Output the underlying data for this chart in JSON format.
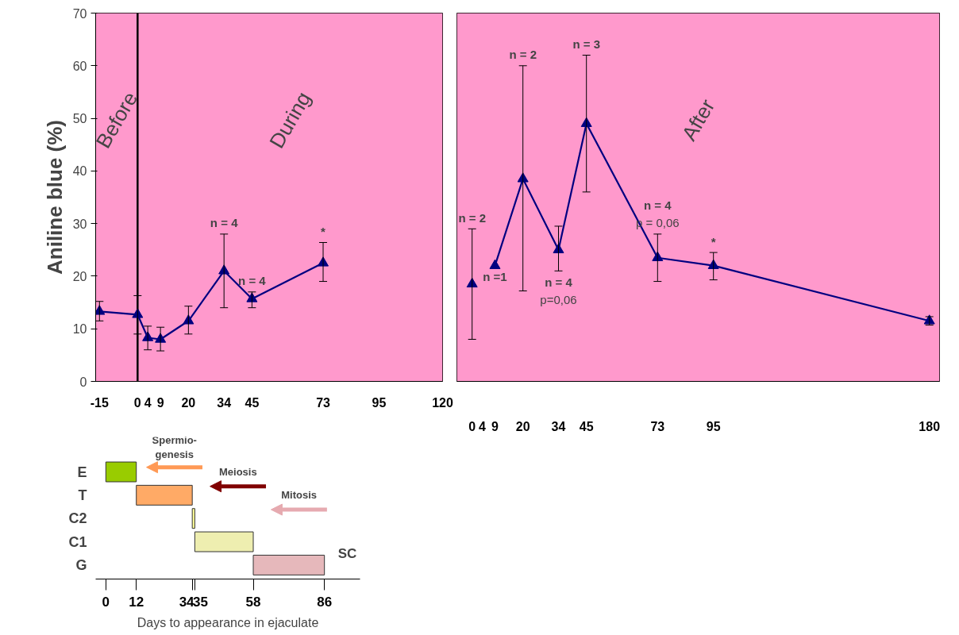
{
  "chart_data": [
    {
      "type": "line",
      "ylabel": "Aniline blue (%)",
      "x": [
        -15,
        0,
        4,
        9,
        20,
        34,
        45,
        73
      ],
      "series": [
        {
          "color": "#000080",
          "values": [
            13.3,
            12.7,
            8.3,
            8,
            11.5,
            21,
            15.7,
            22.5
          ],
          "errors": [
            [
              11.5,
              15.2
            ],
            [
              9,
              16.3
            ],
            [
              6,
              10.5
            ],
            [
              5.8,
              10.3
            ],
            [
              9,
              14.3
            ],
            [
              14,
              28
            ],
            [
              14,
              17
            ],
            [
              19,
              26.4
            ]
          ]
        }
      ],
      "marker": "triangle",
      "xlim": [
        -16.5,
        120
      ],
      "ylim": [
        0,
        70
      ],
      "xticks": [
        -15,
        0,
        4,
        9,
        20,
        34,
        45,
        73,
        95,
        120
      ],
      "yticks": [
        0,
        10,
        20,
        30,
        40,
        50,
        60,
        70
      ],
      "bands": [
        {
          "axis": "x",
          "from": -16.5,
          "to": 0,
          "label": "Before",
          "color": "#ff99cc"
        },
        {
          "axis": "x",
          "from": 0,
          "to": 120,
          "label": "During",
          "color": "#ff99cc"
        }
      ],
      "ref_lines": [
        {
          "axis": "x",
          "value": 0,
          "color": "#000000"
        }
      ],
      "annotations": [
        {
          "text": "n = 4",
          "x": 34,
          "y": 28
        },
        {
          "text": "n = 4",
          "x": 45,
          "y": 17
        },
        {
          "text": "*",
          "x": 73,
          "y": 26.4
        }
      ]
    },
    {
      "type": "line",
      "x": [
        0,
        4,
        9,
        20,
        34,
        45,
        73,
        95,
        180
      ],
      "series": [
        {
          "color": "#000080",
          "values": [
            18.5,
            null,
            22,
            38.5,
            25,
            49,
            23.5,
            22,
            11.5
          ],
          "errors": [
            [
              8,
              29
            ],
            null,
            null,
            [
              17.2,
              60
            ],
            [
              21,
              29.5
            ],
            [
              36,
              62
            ],
            [
              19,
              28
            ],
            [
              19.3,
              24.5
            ],
            [
              10.7,
              12.3
            ]
          ]
        }
      ],
      "marker": "triangle",
      "xlim": [
        -6,
        184
      ],
      "ylim": [
        0,
        70
      ],
      "xticks": [
        0,
        4,
        9,
        20,
        34,
        45,
        73,
        95,
        180
      ],
      "yticks": [
        0,
        10,
        20,
        30,
        40,
        50,
        60,
        70
      ],
      "tick_labels": "x",
      "bands": [
        {
          "axis": "x",
          "from": -6,
          "to": 184,
          "label": "After",
          "color": "#ff99cc"
        }
      ],
      "annotations": [
        {
          "text": "n = 2",
          "x": 0,
          "y": 29
        },
        {
          "text": "n =1",
          "x": 9,
          "y": 22
        },
        {
          "text": "n = 2",
          "x": 20,
          "y": 60
        },
        {
          "text": "n = 4",
          "x": 34,
          "y": 21
        },
        {
          "text": "p=0,06",
          "x": 34,
          "y": 21
        },
        {
          "text": "n = 3",
          "x": 45,
          "y": 62
        },
        {
          "text": "n = 4",
          "x": 73,
          "y": 28
        },
        {
          "text": "p = 0,06",
          "x": 73,
          "y": 28
        },
        {
          "text": "*",
          "x": 95,
          "y": 24.5
        }
      ]
    },
    {
      "type": "bar",
      "orientation": "horizontal",
      "categories": [
        "E",
        "T",
        "C2",
        "C1",
        "G"
      ],
      "base": [
        0,
        12,
        34,
        35,
        58
      ],
      "values": [
        12,
        22,
        1,
        23,
        28
      ],
      "colors": [
        "#99cc00",
        "#ffaa66",
        "#ffff99",
        "#eeeeb0",
        "#e6b8bb"
      ],
      "xlim": [
        -4,
        100
      ],
      "xticks": [
        0,
        12,
        34,
        35,
        58,
        86
      ],
      "xlabel": "Days to appearance in ejaculate",
      "annotations": [
        "Spermio-\ngenesis",
        "Meiosis",
        "Mitosis",
        "SC"
      ]
    }
  ]
}
